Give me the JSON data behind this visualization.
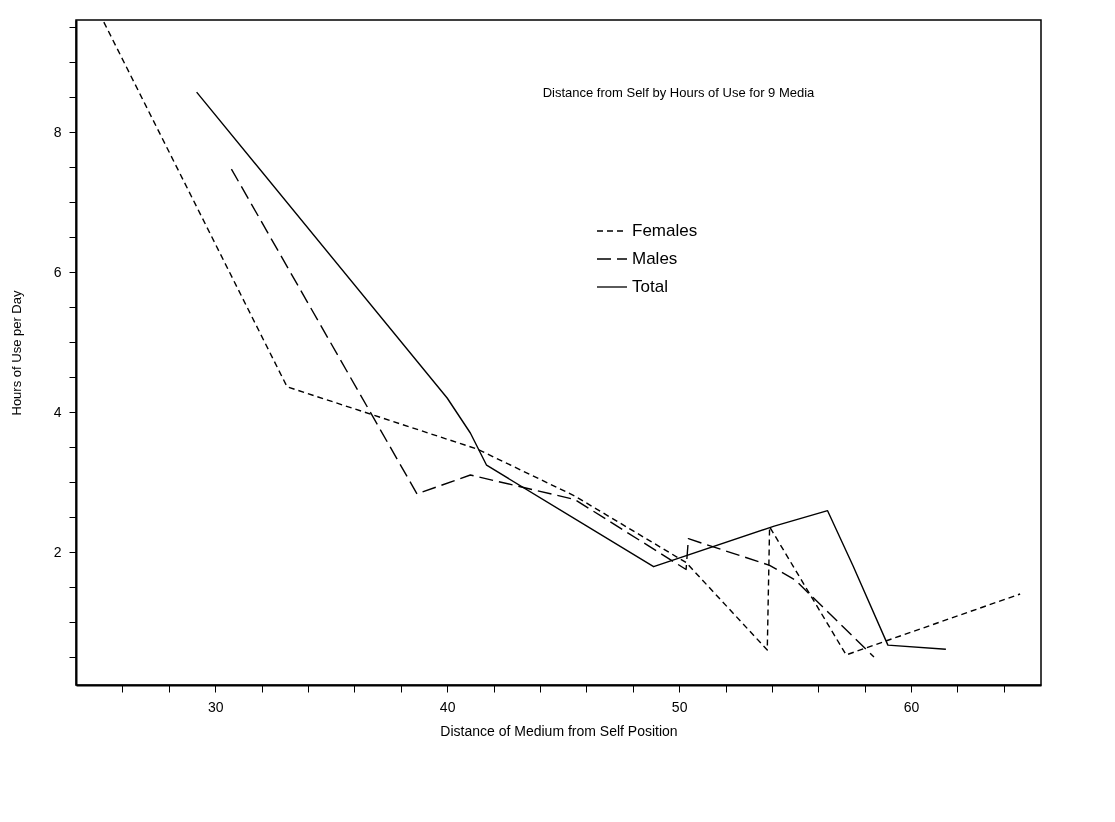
{
  "chart_data": {
    "type": "line",
    "title": "Distance from Self by Hours of Use for 9 Media",
    "xlabel": "Distance of Medium from Self Position",
    "ylabel": "Hours of Use per Day",
    "xlim": [
      24,
      65.6
    ],
    "ylim": [
      0.1,
      9.6
    ],
    "xticks": [
      {
        "value": 26,
        "label": null
      },
      {
        "value": 28,
        "label": null
      },
      30,
      {
        "value": 32,
        "label": null
      },
      {
        "value": 34,
        "label": null
      },
      {
        "value": 36,
        "label": null
      },
      {
        "value": 38,
        "label": null
      },
      40,
      {
        "value": 42,
        "label": null
      },
      {
        "value": 44,
        "label": null
      },
      {
        "value": 46,
        "label": null
      },
      {
        "value": 48,
        "label": null
      },
      50,
      {
        "value": 52,
        "label": null
      },
      {
        "value": 54,
        "label": null
      },
      {
        "value": 56,
        "label": null
      },
      {
        "value": 58,
        "label": null
      },
      60,
      {
        "value": 62,
        "label": null
      },
      {
        "value": 64,
        "label": null
      }
    ],
    "yticks": [
      {
        "value": 0.5,
        "label": null
      },
      {
        "value": 1,
        "label": null
      },
      {
        "value": 1.5,
        "label": null
      },
      2,
      {
        "value": 2.5,
        "label": null
      },
      {
        "value": 3,
        "label": null
      },
      {
        "value": 3.5,
        "label": null
      },
      4,
      {
        "value": 4.5,
        "label": null
      },
      {
        "value": 5,
        "label": null
      },
      {
        "value": 5.5,
        "label": null
      },
      6,
      {
        "value": 6.5,
        "label": null
      },
      {
        "value": 7,
        "label": null
      },
      {
        "value": 7.5,
        "label": null
      },
      8,
      {
        "value": 8.5,
        "label": null
      },
      {
        "value": 9,
        "label": null
      },
      {
        "value": 9.5,
        "label": null
      }
    ],
    "grid": false,
    "legend": "top right",
    "series": [
      {
        "name": "Females",
        "color": "#000000",
        "line_style": "dotted",
        "x": [
          25.2,
          33.1,
          41.3,
          45.5,
          50.3,
          53.8,
          53.9,
          57.2,
          64.7
        ],
        "values": [
          9.57,
          4.36,
          3.47,
          2.8,
          1.85,
          0.6,
          2.36,
          0.53,
          1.4
        ]
      },
      {
        "name": "Males",
        "color": "#000000",
        "line_style": "dashed",
        "x": [
          30.7,
          38.7,
          41.0,
          45.5,
          50.3,
          50.4,
          53.9,
          55.0,
          58.4
        ],
        "values": [
          7.47,
          2.83,
          3.1,
          2.75,
          1.75,
          2.19,
          1.81,
          1.6,
          0.5
        ]
      },
      {
        "name": "Total",
        "color": "#000000",
        "line_style": "solid",
        "x": [
          29.2,
          40.0,
          41.0,
          41.7,
          48.9,
          54.1,
          56.4,
          57.5,
          59.0,
          61.5
        ],
        "values": [
          8.57,
          4.2,
          3.7,
          3.24,
          1.79,
          2.37,
          2.59,
          1.8,
          0.67,
          0.61
        ]
      }
    ]
  }
}
